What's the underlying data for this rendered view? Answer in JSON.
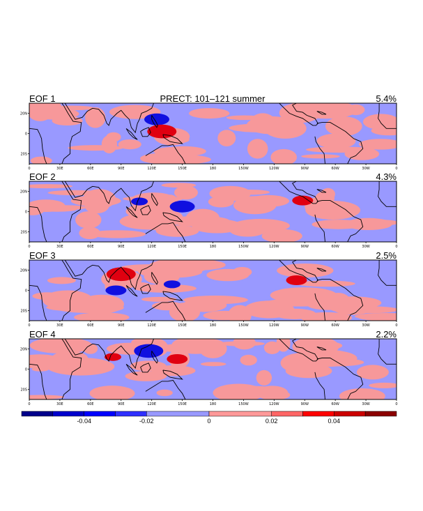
{
  "chart_data": {
    "type": "heatmap",
    "title": "PRECT: 101–121 summer",
    "x_ticks": [
      "0",
      "30E",
      "60E",
      "90E",
      "120E",
      "150E",
      "180",
      "150W",
      "120W",
      "90W",
      "60W",
      "30W",
      "0"
    ],
    "y_ticks": [
      "20N",
      "0",
      "20S"
    ],
    "lon_range": [
      0,
      360
    ],
    "lat_range": [
      -30,
      30
    ],
    "panels": [
      {
        "label": "EOF 1",
        "variance": "5.4%",
        "features": [
          {
            "sign": "negative",
            "lon": 125,
            "lat": 14,
            "magnitude": 0.03
          },
          {
            "sign": "positive",
            "lon": 130,
            "lat": 2,
            "magnitude": 0.035
          }
        ]
      },
      {
        "label": "EOF 2",
        "variance": "4.3%",
        "features": [
          {
            "sign": "negative",
            "lon": 150,
            "lat": 5,
            "magnitude": 0.03
          },
          {
            "sign": "negative",
            "lon": 108,
            "lat": 10,
            "magnitude": 0.02
          },
          {
            "sign": "positive",
            "lon": 268,
            "lat": 11,
            "magnitude": 0.025
          }
        ]
      },
      {
        "label": "EOF 3",
        "variance": "2.5%",
        "features": [
          {
            "sign": "positive",
            "lon": 90,
            "lat": 16,
            "magnitude": 0.035
          },
          {
            "sign": "negative",
            "lon": 85,
            "lat": 0,
            "magnitude": 0.025
          },
          {
            "sign": "negative",
            "lon": 140,
            "lat": 6,
            "magnitude": 0.02
          },
          {
            "sign": "positive",
            "lon": 262,
            "lat": 10,
            "magnitude": 0.025
          }
        ]
      },
      {
        "label": "EOF 4",
        "variance": "2.2%",
        "features": [
          {
            "sign": "negative",
            "lon": 117,
            "lat": 18,
            "magnitude": 0.035
          },
          {
            "sign": "positive",
            "lon": 145,
            "lat": 10,
            "magnitude": 0.025
          },
          {
            "sign": "positive",
            "lon": 82,
            "lat": 12,
            "magnitude": 0.02
          }
        ]
      }
    ],
    "colorbar": {
      "tick_labels": [
        "-0.04",
        "-0.02",
        "0",
        "0.02",
        "0.04"
      ],
      "tick_values": [
        -0.04,
        -0.02,
        0,
        0.02,
        0.04
      ],
      "range": [
        -0.06,
        0.06
      ],
      "levels": [
        -0.06,
        -0.05,
        -0.04,
        -0.03,
        -0.02,
        0,
        0.02,
        0.03,
        0.04,
        0.05,
        0.06
      ],
      "colors": [
        "#00008b",
        "#0000cd",
        "#0000ff",
        "#2f2fff",
        "#9999ff",
        "#ff9999",
        "#ff6666",
        "#ff0000",
        "#cc0000",
        "#8b0000"
      ]
    }
  },
  "colors": {
    "light_blue": "#9999ff",
    "light_red": "#f7989a",
    "blue": "#1010e0",
    "red": "#e00010",
    "land_line": "#000000"
  }
}
